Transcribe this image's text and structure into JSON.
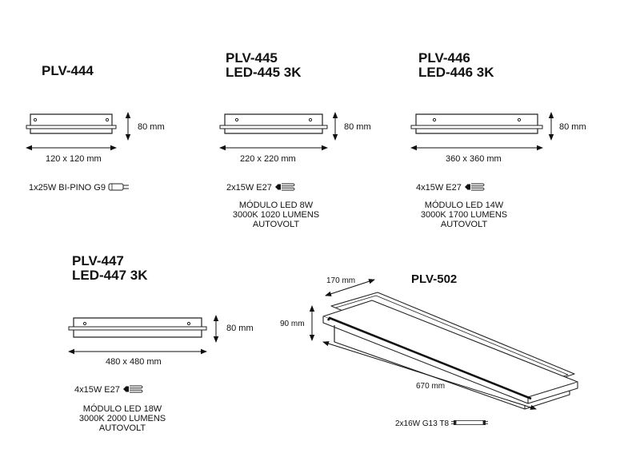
{
  "products": [
    {
      "title_lines": [
        "PLV-444"
      ],
      "width_label": "120 x 120 mm",
      "height_label": "80 mm",
      "lamp_spec": "1x25W BI-PINO G9",
      "lamp_icon": "g9-bipin-bulb-icon",
      "module_lines": []
    },
    {
      "title_lines": [
        "PLV-445",
        "LED-445 3K"
      ],
      "width_label": "220 x 220 mm",
      "height_label": "80 mm",
      "lamp_spec": "2x15W  E27",
      "lamp_icon": "e27-cfl-bulb-icon",
      "module_lines": [
        "MÓDULO LED 8W",
        "3000K 1020 LUMENS",
        "AUTOVOLT"
      ]
    },
    {
      "title_lines": [
        "PLV-446",
        "LED-446 3K"
      ],
      "width_label": "360 x 360 mm",
      "height_label": "80 mm",
      "lamp_spec": "4x15W  E27",
      "lamp_icon": "e27-cfl-bulb-icon",
      "module_lines": [
        "MÓDULO LED 14W",
        "3000K 1700 LUMENS",
        "AUTOVOLT"
      ]
    },
    {
      "title_lines": [
        "PLV-447",
        "LED-447 3K"
      ],
      "width_label": "480 x 480 mm",
      "height_label": "80 mm",
      "lamp_spec": "4x15W E27",
      "lamp_icon": "e27-cfl-bulb-icon",
      "module_lines": [
        "MÓDULO LED 18W",
        "3000K 2000 LUMENS",
        "AUTOVOLT"
      ]
    },
    {
      "title_lines": [
        "PLV-502"
      ],
      "width_label": "170 mm",
      "height_label": "90 mm",
      "length_label": "670 mm",
      "lamp_spec": "2x16W  G13  T8",
      "lamp_icon": "t8-fluorescent-tube-icon",
      "module_lines": []
    }
  ]
}
